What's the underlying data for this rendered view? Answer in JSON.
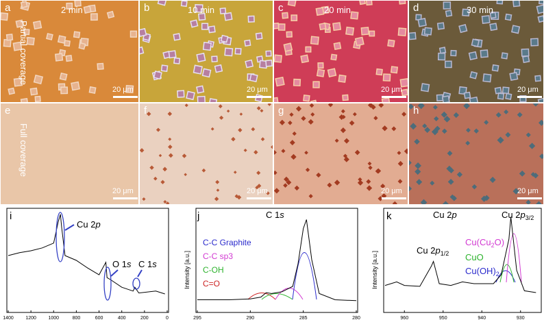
{
  "panels": {
    "a": {
      "letter": "a",
      "time": "2 min",
      "scale": "20 μm"
    },
    "b": {
      "letter": "b",
      "time": "10 min",
      "scale": "20 μm"
    },
    "c": {
      "letter": "c",
      "time": "20 min",
      "scale": "20 μm"
    },
    "d": {
      "letter": "d",
      "time": "30 min",
      "scale": "20 μm"
    },
    "e": {
      "letter": "e",
      "scale": "20 μm"
    },
    "f": {
      "letter": "f",
      "scale": "20 μm"
    },
    "g": {
      "letter": "g",
      "scale": "20 μm"
    },
    "h": {
      "letter": "h",
      "scale": "20 μm"
    }
  },
  "row_labels": {
    "partial": "Partial coverage",
    "full": "Full coverage"
  },
  "colors": {
    "a": "#d9893a",
    "b": "#c8a53a",
    "c": "#cf3d57",
    "d": "#6b5a3a",
    "e": "#e9c6a8",
    "f": "#ead1c0",
    "g": "#e2ac92",
    "h": "#b9705a"
  },
  "chart_data": [
    {
      "type": "line",
      "panel": "i",
      "x_ticks": [
        "1400",
        "1200",
        "1000",
        "800",
        "600",
        "400",
        "200",
        "0"
      ],
      "annotations": [
        "Cu 2p",
        "O 1s",
        "C 1s"
      ],
      "xlim": [
        1400,
        0
      ],
      "series": [
        {
          "x": [
            1400,
            1300,
            1200,
            1100,
            1000,
            960,
            940,
            930,
            900,
            800,
            700,
            600,
            540,
            530,
            500,
            400,
            300,
            285,
            250,
            100,
            20
          ],
          "y": [
            0.55,
            0.58,
            0.6,
            0.63,
            0.68,
            0.9,
            0.98,
            0.85,
            0.55,
            0.5,
            0.42,
            0.35,
            0.48,
            0.32,
            0.3,
            0.22,
            0.18,
            0.22,
            0.16,
            0.18,
            0.15
          ]
        }
      ]
    },
    {
      "type": "line",
      "panel": "j",
      "title": "C 1s",
      "ylabel": "Intensity [a.u.]",
      "x_ticks": [
        "295",
        "290",
        "285",
        "280"
      ],
      "xlim": [
        295,
        280
      ],
      "legend": [
        "C-C Graphite",
        "C-C sp3",
        "C-OH",
        "C=O"
      ],
      "legend_colors": [
        "#2a2acc",
        "#d23ad2",
        "#2db32d",
        "#cc2222"
      ],
      "series": [
        {
          "x": [
            295,
            292,
            290,
            289,
            288.5,
            288,
            287,
            286,
            285.5,
            285,
            284.7,
            284.2,
            283.5,
            282,
            280
          ],
          "y": [
            0.05,
            0.05,
            0.06,
            0.08,
            0.13,
            0.12,
            0.14,
            0.2,
            0.45,
            0.85,
            0.95,
            0.5,
            0.12,
            0.05,
            0.04
          ]
        }
      ]
    },
    {
      "type": "line",
      "panel": "k",
      "title": "Cu 2p",
      "ylabel": "Intensity [a.u.]",
      "x_ticks": [
        "960",
        "950",
        "940",
        "930"
      ],
      "xlim": [
        965,
        925
      ],
      "labels": [
        "Cu 2p1/2",
        "Cu 2p3/2"
      ],
      "legend": [
        "Cu(Cu2O)",
        "CuO",
        "Cu(OH)2"
      ],
      "legend_colors": [
        "#d23ad2",
        "#2db32d",
        "#2a2acc"
      ],
      "series": [
        {
          "x": [
            965,
            962,
            960,
            956,
            953,
            952.5,
            951,
            948,
            945,
            942,
            940,
            937,
            935,
            933,
            932.5,
            931,
            929,
            926
          ],
          "y": [
            0.18,
            0.22,
            0.18,
            0.17,
            0.4,
            0.45,
            0.2,
            0.18,
            0.22,
            0.2,
            0.2,
            0.2,
            0.3,
            0.7,
            0.95,
            0.35,
            0.12,
            0.1
          ]
        }
      ]
    }
  ]
}
